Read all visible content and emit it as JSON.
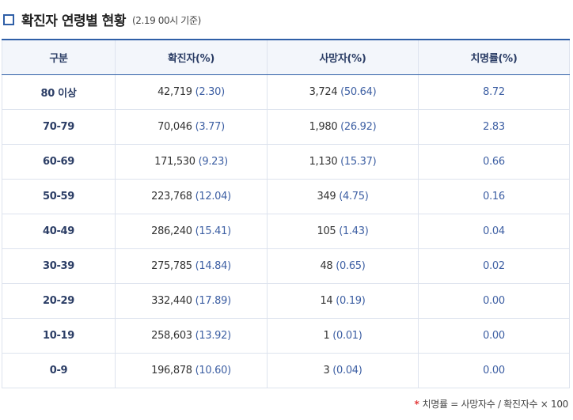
{
  "header": {
    "icon": "square-bullet-icon",
    "title": "확진자 연령별 현황",
    "subtitle": "(2.19 00시 기준)"
  },
  "table": {
    "columns": [
      "구분",
      "확진자(%)",
      "사망자(%)",
      "치명률(%)"
    ],
    "rows": [
      {
        "group": "80 이상",
        "confirmed": "42,719",
        "confirmed_pct": "(2.30)",
        "deaths": "3,724",
        "deaths_pct": "(50.64)",
        "fatality": "8.72"
      },
      {
        "group": "70-79",
        "confirmed": "70,046",
        "confirmed_pct": "(3.77)",
        "deaths": "1,980",
        "deaths_pct": "(26.92)",
        "fatality": "2.83"
      },
      {
        "group": "60-69",
        "confirmed": "171,530",
        "confirmed_pct": "(9.23)",
        "deaths": "1,130",
        "deaths_pct": "(15.37)",
        "fatality": "0.66"
      },
      {
        "group": "50-59",
        "confirmed": "223,768",
        "confirmed_pct": "(12.04)",
        "deaths": "349",
        "deaths_pct": "(4.75)",
        "fatality": "0.16"
      },
      {
        "group": "40-49",
        "confirmed": "286,240",
        "confirmed_pct": "(15.41)",
        "deaths": "105",
        "deaths_pct": "(1.43)",
        "fatality": "0.04"
      },
      {
        "group": "30-39",
        "confirmed": "275,785",
        "confirmed_pct": "(14.84)",
        "deaths": "48",
        "deaths_pct": "(0.65)",
        "fatality": "0.02"
      },
      {
        "group": "20-29",
        "confirmed": "332,440",
        "confirmed_pct": "(17.89)",
        "deaths": "14",
        "deaths_pct": "(0.19)",
        "fatality": "0.00"
      },
      {
        "group": "10-19",
        "confirmed": "258,603",
        "confirmed_pct": "(13.92)",
        "deaths": "1",
        "deaths_pct": "(0.01)",
        "fatality": "0.00"
      },
      {
        "group": "0-9",
        "confirmed": "196,878",
        "confirmed_pct": "(10.60)",
        "deaths": "3",
        "deaths_pct": "(0.04)",
        "fatality": "0.00"
      }
    ]
  },
  "footnote": {
    "marker": "*",
    "text": "치명률 = 사망자수 / 확진자수 × 100"
  },
  "colors": {
    "accent": "#2f5fa7",
    "header_bg": "#f3f6fb",
    "value_blue": "#3d5fa3",
    "star_red": "#e23a3a"
  }
}
